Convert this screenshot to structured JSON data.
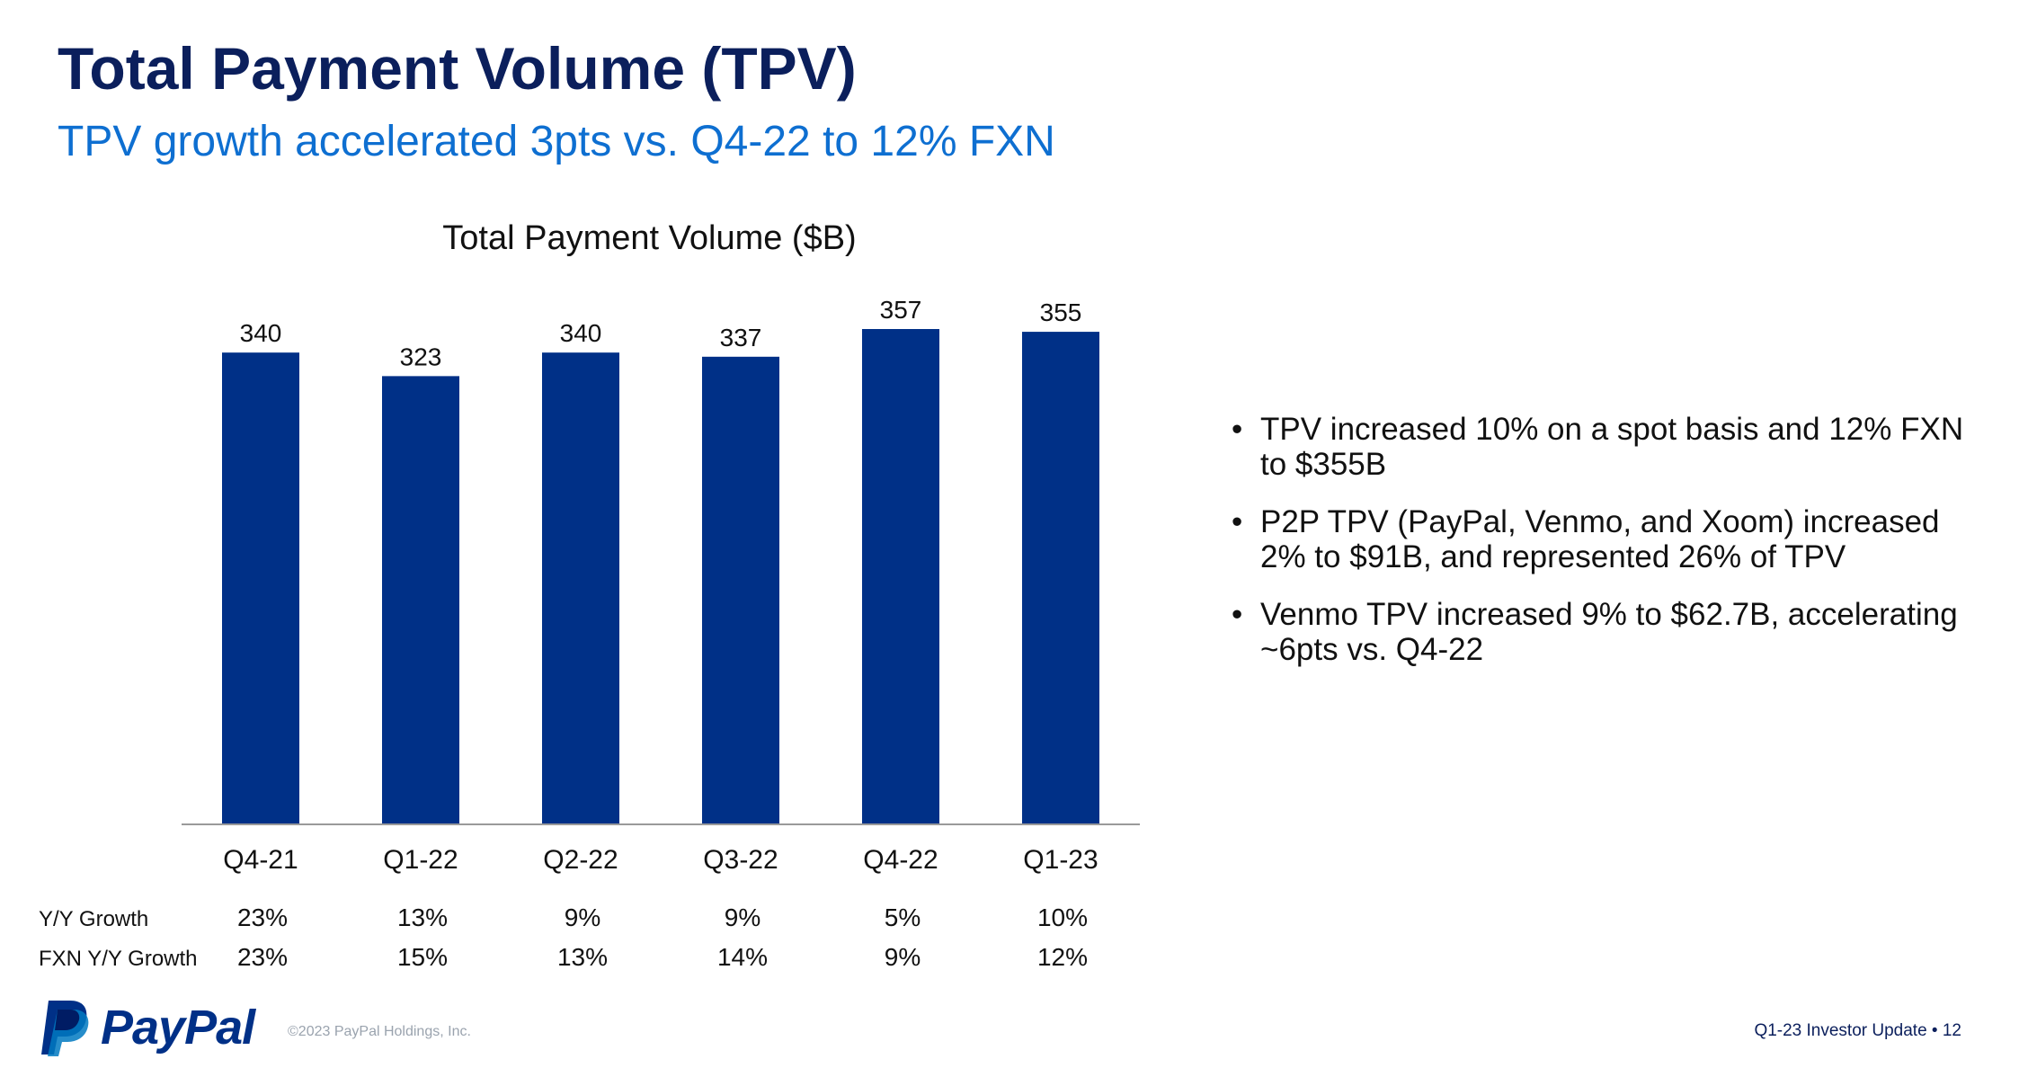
{
  "header": {
    "title": "Total Payment Volume (TPV)",
    "subtitle": "TPV growth accelerated 3pts vs. Q4-22 to 12% FXN"
  },
  "chart_data": {
    "type": "bar",
    "title": "Total Payment Volume ($B)",
    "categories": [
      "Q4-21",
      "Q1-22",
      "Q2-22",
      "Q3-22",
      "Q4-22",
      "Q1-23"
    ],
    "values": [
      340,
      323,
      340,
      337,
      357,
      355
    ],
    "ylim": [
      0,
      357
    ],
    "bar_color": "#003087",
    "grid": false,
    "rows": [
      {
        "label": "Y/Y Growth",
        "values": [
          "23%",
          "13%",
          "9%",
          "9%",
          "5%",
          "10%"
        ]
      },
      {
        "label": "FXN Y/Y Growth",
        "values": [
          "23%",
          "15%",
          "13%",
          "14%",
          "9%",
          "12%"
        ]
      }
    ]
  },
  "bullets": [
    "TPV increased 10% on a spot basis and 12% FXN to $355B",
    "P2P TPV (PayPal, Venmo, and Xoom) increased 2% to $91B, and represented 26% of TPV",
    "Venmo TPV increased 9% to $62.7B, accelerating ~6pts vs. Q4-22"
  ],
  "footer": {
    "logo_text": "PayPal",
    "logo_icon": "paypal-p-icon",
    "copyright": "©2023 PayPal Holdings, Inc.",
    "right": "Q1-23 Investor Update  •  12"
  },
  "colors": {
    "title": "#0b1f5c",
    "subtitle": "#0e6fd1",
    "bar": "#003087"
  }
}
